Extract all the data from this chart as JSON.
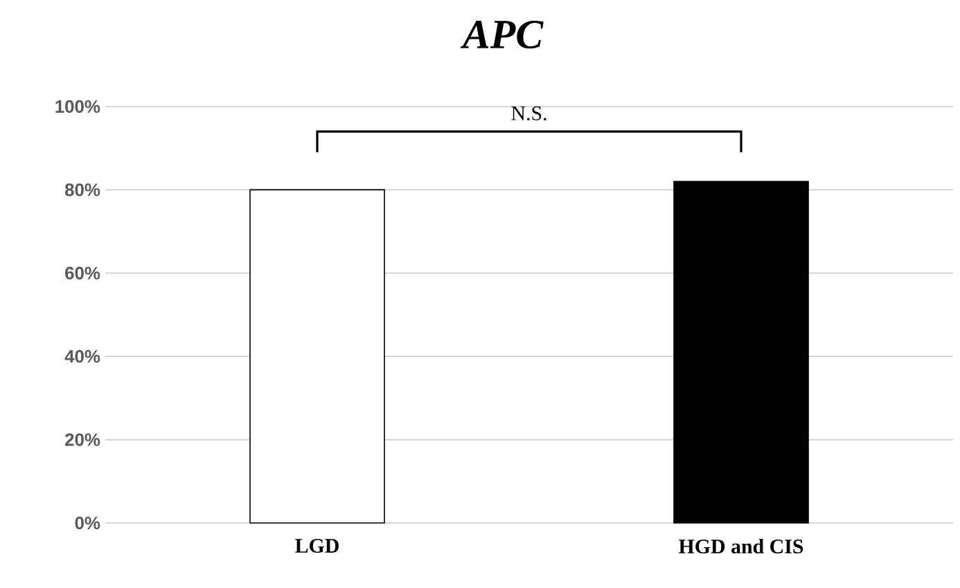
{
  "chart_data": {
    "type": "bar",
    "title": "APC",
    "categories": [
      "LGD",
      "HGD and CIS"
    ],
    "values": [
      80,
      82
    ],
    "colors": [
      "#ffffff",
      "#000000"
    ],
    "ylim": [
      0,
      100
    ],
    "yticks": [
      {
        "value": 0,
        "label": "0%"
      },
      {
        "value": 20,
        "label": "20%"
      },
      {
        "value": 40,
        "label": "40%"
      },
      {
        "value": 60,
        "label": "60%"
      },
      {
        "value": 80,
        "label": "80%"
      },
      {
        "value": 100,
        "label": "100%"
      }
    ],
    "grid": "y",
    "annotations": [
      "N.S."
    ]
  }
}
